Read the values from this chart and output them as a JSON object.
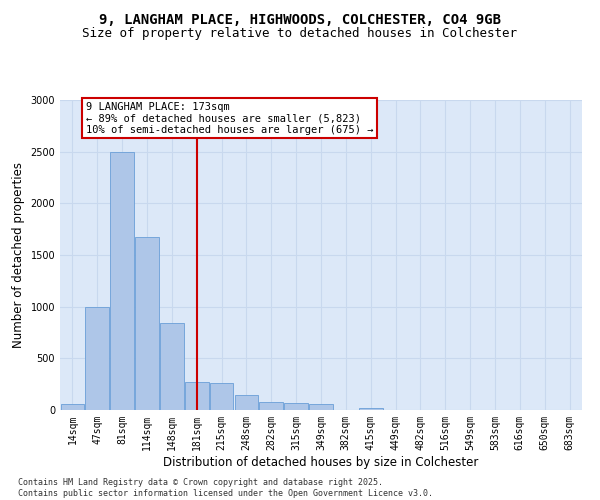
{
  "title": "9, LANGHAM PLACE, HIGHWOODS, COLCHESTER, CO4 9GB",
  "subtitle": "Size of property relative to detached houses in Colchester",
  "xlabel": "Distribution of detached houses by size in Colchester",
  "ylabel": "Number of detached properties",
  "categories": [
    "14sqm",
    "47sqm",
    "81sqm",
    "114sqm",
    "148sqm",
    "181sqm",
    "215sqm",
    "248sqm",
    "282sqm",
    "315sqm",
    "349sqm",
    "382sqm",
    "415sqm",
    "449sqm",
    "482sqm",
    "516sqm",
    "549sqm",
    "583sqm",
    "616sqm",
    "650sqm",
    "683sqm"
  ],
  "values": [
    55,
    1000,
    2500,
    1670,
    840,
    270,
    260,
    150,
    75,
    65,
    60,
    0,
    20,
    0,
    0,
    0,
    0,
    0,
    0,
    0,
    0
  ],
  "bar_color": "#aec6e8",
  "bar_edge_color": "#6a9fd8",
  "vline_x": 5.0,
  "vline_color": "#cc0000",
  "annotation_text": "9 LANGHAM PLACE: 173sqm\n← 89% of detached houses are smaller (5,823)\n10% of semi-detached houses are larger (675) →",
  "annotation_box_color": "#ffffff",
  "annotation_box_edge_color": "#cc0000",
  "ylim": [
    0,
    3000
  ],
  "yticks": [
    0,
    500,
    1000,
    1500,
    2000,
    2500,
    3000
  ],
  "grid_color": "#c8d8ee",
  "background_color": "#dce8f8",
  "footer": "Contains HM Land Registry data © Crown copyright and database right 2025.\nContains public sector information licensed under the Open Government Licence v3.0.",
  "title_fontsize": 10,
  "subtitle_fontsize": 9,
  "xlabel_fontsize": 8.5,
  "ylabel_fontsize": 8.5,
  "tick_fontsize": 7,
  "footer_fontsize": 6,
  "annotation_fontsize": 7.5
}
